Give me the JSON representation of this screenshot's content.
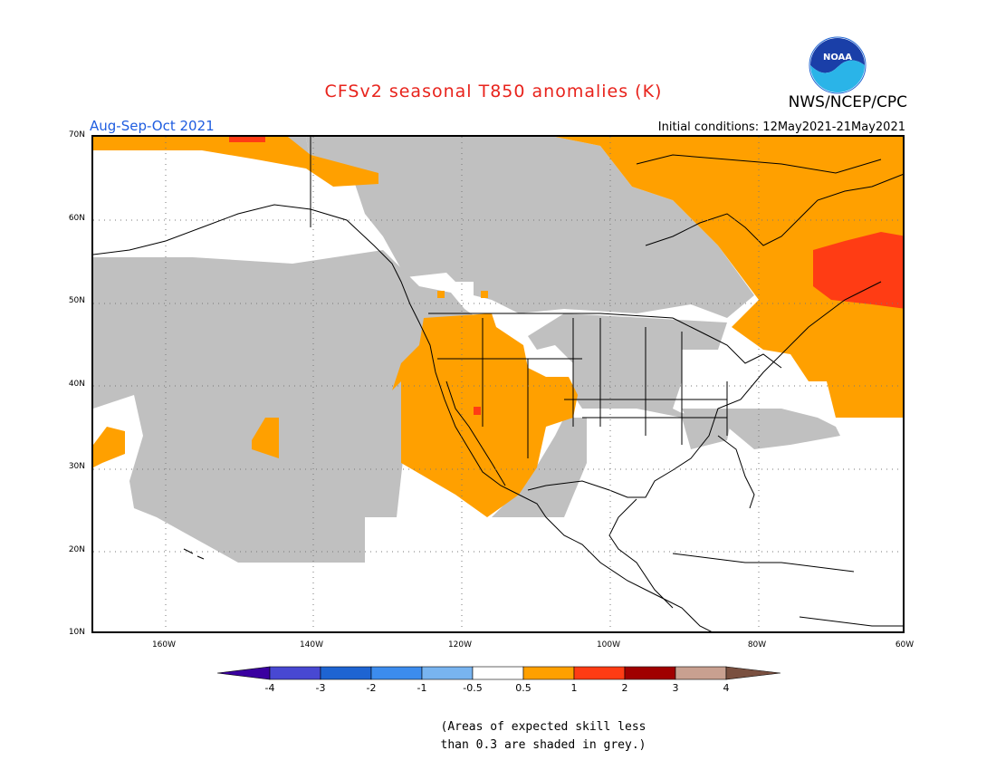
{
  "header": {
    "title": "CFSv2 seasonal T850 anomalies (K)",
    "agency": "NWS/NCEP/CPC",
    "season": "Aug-Sep-Oct 2021",
    "initial_conditions": "Initial conditions: 12May2021-21May2021",
    "logo_text": "NOAA"
  },
  "map": {
    "lat_labels": [
      "70N",
      "60N",
      "50N",
      "40N",
      "30N",
      "20N",
      "10N"
    ],
    "lon_labels": [
      "160W",
      "140W",
      "120W",
      "100W",
      "80W",
      "60W"
    ],
    "colors": {
      "skill_grey": "#c0c0c0",
      "warm_0_5_1": "#ffa000",
      "warm_1_2": "#ff3c14",
      "coastline": "#000000"
    }
  },
  "colorbar": {
    "labels": [
      "-4",
      "-3",
      "-2",
      "-1",
      "-0.5",
      "0.5",
      "1",
      "2",
      "3",
      "4"
    ],
    "colors": [
      "#3a00a0",
      "#4848d2",
      "#1e64d2",
      "#3c8cee",
      "#78b4f0",
      "#ffffff",
      "#ffa000",
      "#ff3c14",
      "#a00000",
      "#c8a090",
      "#7a5040"
    ]
  },
  "footnote": {
    "line1": "(Areas of expected skill less",
    "line2": "than 0.3 are shaded in grey.)"
  }
}
